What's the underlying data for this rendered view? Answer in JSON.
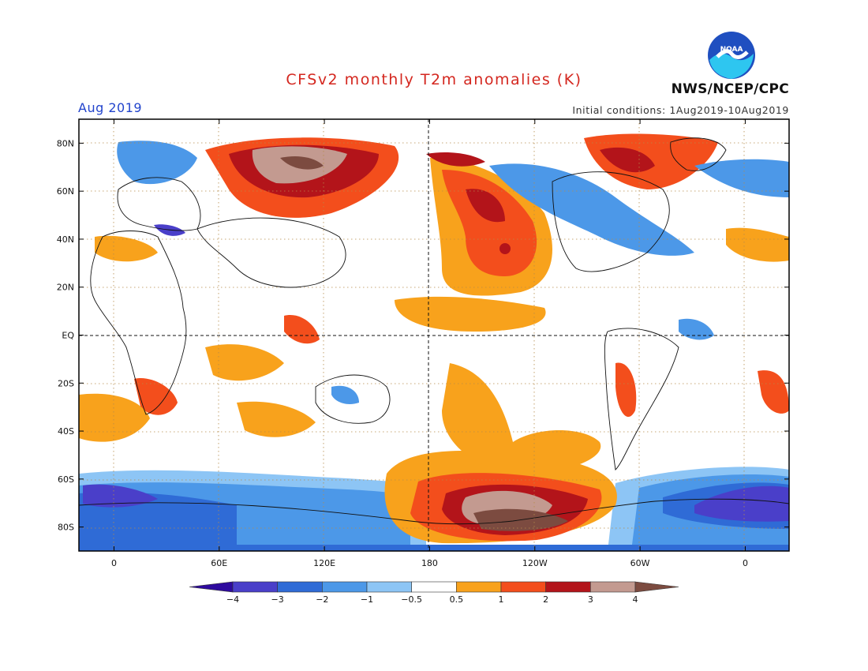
{
  "header": {
    "title": "CFSv2 monthly T2m anomalies (K)",
    "month": "Aug 2019",
    "initial_conditions": "Initial conditions: 1Aug2019-10Aug2019",
    "agency": "NWS/NCEP/CPC",
    "logo_text": "NOAA"
  },
  "axes": {
    "lat_labels": [
      "80N",
      "60N",
      "40N",
      "20N",
      "EQ",
      "20S",
      "40S",
      "60S",
      "80S"
    ],
    "lat_values": [
      80,
      60,
      40,
      20,
      0,
      -20,
      -40,
      -60,
      -80
    ],
    "lon_labels": [
      "0",
      "60E",
      "120E",
      "180",
      "120W",
      "60W",
      "0"
    ],
    "lon_values": [
      0,
      60,
      120,
      180,
      240,
      300,
      360
    ],
    "lon_range": [
      -20,
      385
    ],
    "lat_range": [
      -90,
      90
    ]
  },
  "colorbar": {
    "labels": [
      "−4",
      "−3",
      "−2",
      "−1",
      "−0.5",
      "0.5",
      "1",
      "2",
      "3",
      "4"
    ],
    "colors": [
      "#2e0a9e",
      "#4a3fc9",
      "#2f6bd6",
      "#4c98e8",
      "#8dc5f5",
      "#ffffff",
      "#f8a21c",
      "#f34e1c",
      "#b3141a",
      "#c39a90",
      "#7c4b40"
    ]
  },
  "colors": {
    "cold_strong": "#4a3fc9",
    "cold": "#2f6bd6",
    "cool": "#4c98e8",
    "cool_light": "#8dc5f5",
    "warm_light": "#f8a21c",
    "warm": "#f34e1c",
    "hot": "#b3141a",
    "very_hot": "#c39a90",
    "extreme": "#7c4b40"
  }
}
